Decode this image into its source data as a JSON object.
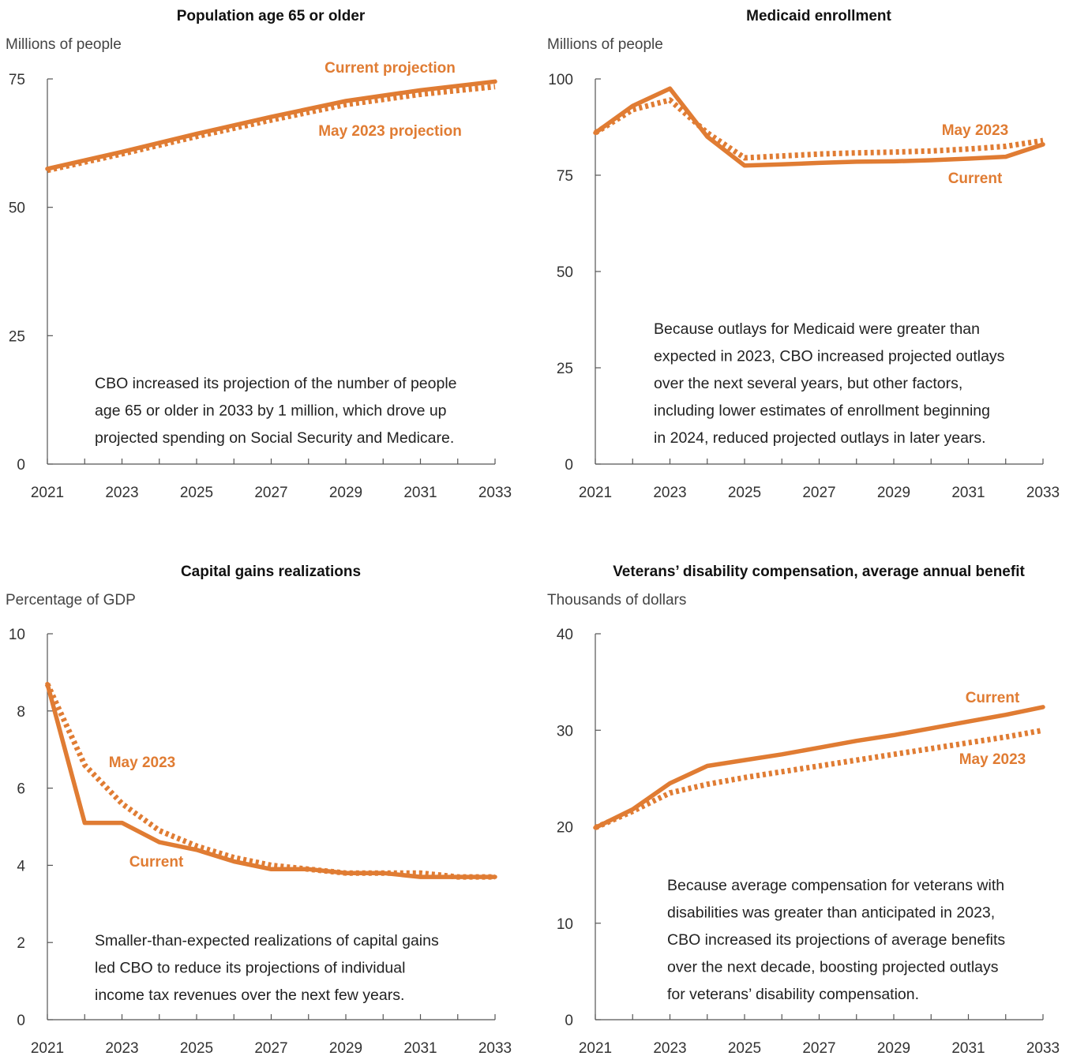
{
  "accent_color": "#E07C33",
  "chart_data": [
    {
      "type": "line",
      "title": "Population age 65 or older",
      "unit": "Millions of people",
      "x_ticks": [
        "2021",
        "2023",
        "2025",
        "2027",
        "2029",
        "2031",
        "2033"
      ],
      "y_ticks": [
        "0",
        "25",
        "50",
        "75"
      ],
      "ylim": [
        0,
        75
      ],
      "xlim": [
        2021,
        2033
      ],
      "series": [
        {
          "name": "Current projection",
          "style": "solid",
          "x": [
            2021,
            2023,
            2025,
            2027,
            2029,
            2031,
            2033
          ],
          "values": [
            57.5,
            60.8,
            64.3,
            67.6,
            70.7,
            72.8,
            74.5
          ]
        },
        {
          "name": "May 2023 projection",
          "style": "dotted",
          "x": [
            2021,
            2023,
            2025,
            2027,
            2029,
            2031,
            2033
          ],
          "values": [
            57.2,
            60.4,
            63.8,
            67.0,
            70.0,
            72.0,
            73.5
          ]
        }
      ],
      "annotation": [
        "CBO increased its projection of the number of people",
        "age 65 or older in 2033 by 1 million, which drove up",
        "projected spending on Social Security and Medicare."
      ]
    },
    {
      "type": "line",
      "title": "Medicaid enrollment",
      "unit": "Millions of people",
      "x_ticks": [
        "2021",
        "2023",
        "2025",
        "2027",
        "2029",
        "2031",
        "2033"
      ],
      "y_ticks": [
        "0",
        "25",
        "50",
        "75",
        "100"
      ],
      "ylim": [
        0,
        100
      ],
      "xlim": [
        2021,
        2033
      ],
      "series": [
        {
          "name": "Current",
          "style": "solid",
          "x": [
            2021,
            2022,
            2023,
            2024,
            2025,
            2026,
            2027,
            2028,
            2029,
            2030,
            2031,
            2032,
            2033
          ],
          "values": [
            86,
            93,
            97.5,
            85,
            77.5,
            77.8,
            78.2,
            78.5,
            78.6,
            78.9,
            79.3,
            79.8,
            83
          ]
        },
        {
          "name": "May 2023",
          "style": "dotted",
          "x": [
            2021,
            2022,
            2023,
            2024,
            2025,
            2026,
            2027,
            2028,
            2029,
            2030,
            2031,
            2032,
            2033
          ],
          "values": [
            86,
            92,
            94.5,
            86,
            79.5,
            80,
            80.5,
            80.8,
            81,
            81.3,
            81.8,
            82.5,
            84
          ]
        }
      ],
      "annotation": [
        "Because outlays for Medicaid were greater than",
        "expected in 2023, CBO increased projected outlays",
        "over the next several years, but other factors,",
        "including lower estimates of enrollment beginning",
        "in 2024, reduced projected outlays in later years."
      ]
    },
    {
      "type": "line",
      "title": "Capital gains realizations",
      "unit": "Percentage of GDP",
      "x_ticks": [
        "2021",
        "2023",
        "2025",
        "2027",
        "2029",
        "2031",
        "2033"
      ],
      "y_ticks": [
        "0",
        "2",
        "4",
        "6",
        "8",
        "10"
      ],
      "ylim": [
        0,
        10
      ],
      "xlim": [
        2021,
        2033
      ],
      "series": [
        {
          "name": "Current",
          "style": "solid",
          "x": [
            2021,
            2022,
            2023,
            2024,
            2025,
            2026,
            2027,
            2028,
            2029,
            2030,
            2031,
            2032,
            2033
          ],
          "values": [
            8.7,
            5.1,
            5.1,
            4.6,
            4.4,
            4.1,
            3.9,
            3.9,
            3.8,
            3.8,
            3.7,
            3.7,
            3.7
          ]
        },
        {
          "name": "May 2023",
          "style": "dotted",
          "x": [
            2021,
            2022,
            2023,
            2024,
            2025,
            2026,
            2027,
            2028,
            2029,
            2030,
            2031,
            2032,
            2033
          ],
          "values": [
            8.7,
            6.6,
            5.6,
            4.9,
            4.5,
            4.2,
            4.0,
            3.9,
            3.8,
            3.8,
            3.8,
            3.7,
            3.7
          ]
        }
      ],
      "annotation": [
        "Smaller-than-expected realizations of capital gains",
        "led CBO to reduce its projections of individual",
        "income tax revenues over the next few years."
      ]
    },
    {
      "type": "line",
      "title": "Veterans’ disability compensation, average annual benefit",
      "unit": "Thousands of dollars",
      "x_ticks": [
        "2021",
        "2023",
        "2025",
        "2027",
        "2029",
        "2031",
        "2033"
      ],
      "y_ticks": [
        "0",
        "10",
        "20",
        "30",
        "40"
      ],
      "ylim": [
        0,
        40
      ],
      "xlim": [
        2021,
        2033
      ],
      "series": [
        {
          "name": "Current",
          "style": "solid",
          "x": [
            2021,
            2022,
            2023,
            2024,
            2025,
            2026,
            2027,
            2028,
            2029,
            2030,
            2031,
            2032,
            2033
          ],
          "values": [
            19.9,
            21.8,
            24.5,
            26.3,
            26.9,
            27.5,
            28.2,
            28.9,
            29.5,
            30.2,
            30.9,
            31.6,
            32.4
          ]
        },
        {
          "name": "May 2023",
          "style": "dotted",
          "x": [
            2021,
            2022,
            2023,
            2024,
            2025,
            2026,
            2027,
            2028,
            2029,
            2030,
            2031,
            2032,
            2033
          ],
          "values": [
            19.9,
            21.6,
            23.5,
            24.4,
            25.1,
            25.7,
            26.3,
            26.9,
            27.5,
            28.1,
            28.7,
            29.3,
            30.0
          ]
        }
      ],
      "annotation": [
        "Because average compensation for veterans with",
        "disabilities was greater than anticipated in 2023,",
        "CBO increased its projections of average benefits",
        "over the next decade, boosting projected outlays",
        "for veterans’ disability compensation."
      ]
    }
  ]
}
